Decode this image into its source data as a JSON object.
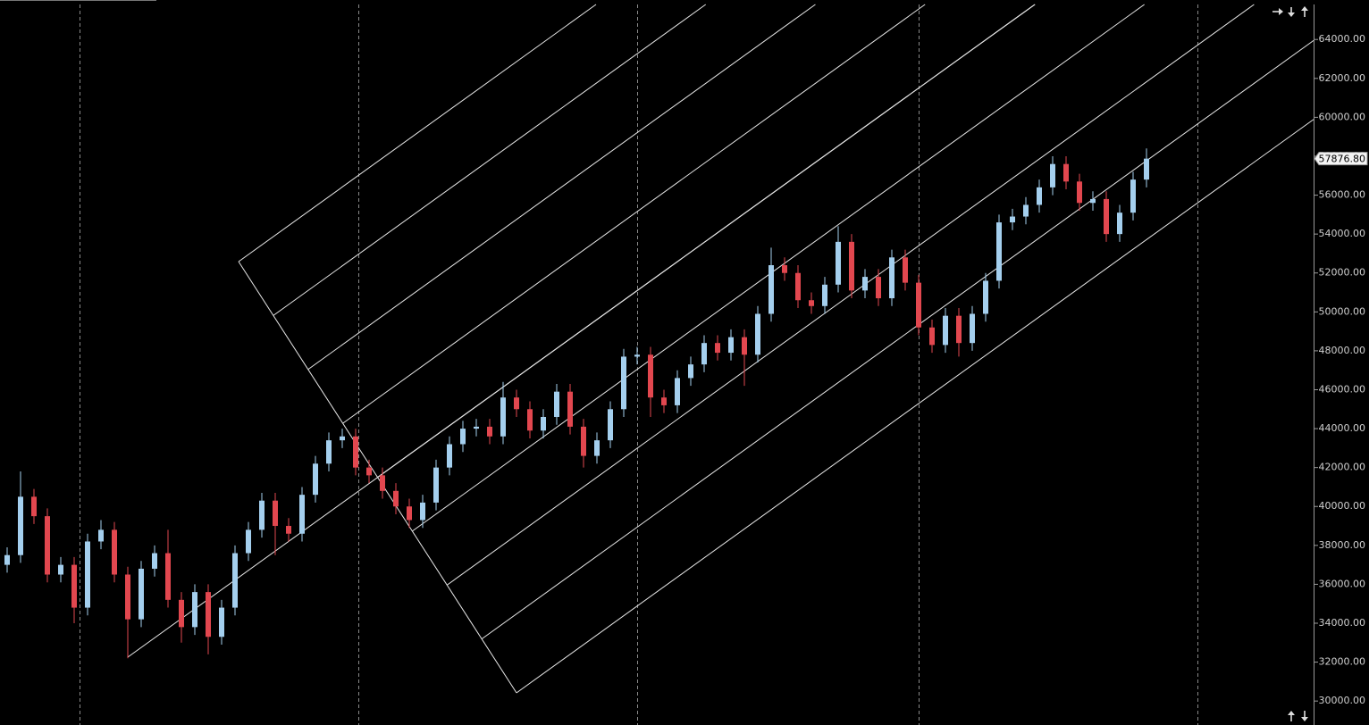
{
  "chart_data": {
    "type": "candlestick",
    "up_color": "#a4cfee",
    "down_color": "#e2474f",
    "ylim": [
      28860,
      65800
    ],
    "yticks": [
      {
        "value": 30000,
        "label": "30000.00"
      },
      {
        "value": 32000,
        "label": "32000.00"
      },
      {
        "value": 34000,
        "label": "34000.00"
      },
      {
        "value": 36000,
        "label": "36000.00"
      },
      {
        "value": 38000,
        "label": "38000.00"
      },
      {
        "value": 40000,
        "label": "40000.00"
      },
      {
        "value": 42000,
        "label": "42000.00"
      },
      {
        "value": 44000,
        "label": "44000.00"
      },
      {
        "value": 46000,
        "label": "46000.00"
      },
      {
        "value": 48000,
        "label": "48000.00"
      },
      {
        "value": 50000,
        "label": "50000.00"
      },
      {
        "value": 52000,
        "label": "52000.00"
      },
      {
        "value": 54000,
        "label": "54000.00"
      },
      {
        "value": 56000,
        "label": "56000.00"
      },
      {
        "value": 58000,
        "label": "58000.00"
      },
      {
        "value": 60000,
        "label": "60000.00"
      },
      {
        "value": 62000,
        "label": "62000.00"
      },
      {
        "value": 64000,
        "label": "64000.00"
      }
    ],
    "last_price": {
      "value": 57876.8,
      "label": "57876.80"
    },
    "open": [
      37000,
      37500,
      40500,
      39500,
      36500,
      37000,
      34800,
      38200,
      38800,
      36500,
      34200,
      36800,
      37600,
      35200,
      33800,
      35600,
      33300,
      34800,
      37600,
      38800,
      40300,
      39000,
      38600,
      40600,
      42200,
      43400,
      43600,
      42000,
      41600,
      40800,
      40000,
      39300,
      40200,
      42000,
      43200,
      44000,
      44100,
      43600,
      45600,
      45000,
      43900,
      44600,
      45900,
      44100,
      42600,
      43400,
      45000,
      47700,
      47800,
      45600,
      45200,
      46600,
      47300,
      48400,
      47900,
      48700,
      47800,
      49900,
      52400,
      52000,
      50600,
      50300,
      51400,
      53600,
      51100,
      51800,
      50700,
      52800,
      51500,
      49200,
      48300,
      49800,
      48400,
      49900,
      51600,
      54600,
      54900,
      55500,
      56400,
      57600,
      56700,
      55600,
      55800,
      54000,
      55100,
      56800
    ],
    "high": [
      37900,
      41800,
      40900,
      39900,
      37400,
      37400,
      38600,
      39300,
      39200,
      36900,
      37200,
      38000,
      38800,
      35600,
      36000,
      36000,
      35200,
      38000,
      39200,
      40700,
      40700,
      39400,
      41000,
      42600,
      43800,
      44000,
      44000,
      42400,
      42000,
      41200,
      40400,
      40600,
      42400,
      43600,
      44400,
      44500,
      44500,
      46400,
      46000,
      45400,
      45000,
      46300,
      46300,
      44500,
      43800,
      45400,
      48100,
      48200,
      48200,
      46000,
      47000,
      47700,
      48800,
      48800,
      49100,
      49100,
      50300,
      53300,
      52800,
      52400,
      51000,
      51800,
      54400,
      54000,
      52200,
      52200,
      53200,
      53200,
      51900,
      49600,
      50200,
      50200,
      50300,
      52000,
      55000,
      55300,
      55900,
      56800,
      58000,
      58000,
      57100,
      56200,
      56200,
      55500,
      57200,
      58400
    ],
    "low": [
      36600,
      37100,
      39100,
      36100,
      36100,
      34000,
      34400,
      37800,
      36100,
      32200,
      33800,
      36400,
      34800,
      33000,
      33400,
      32400,
      32900,
      34400,
      37200,
      38400,
      37500,
      38200,
      38200,
      40200,
      41800,
      43000,
      41600,
      41200,
      40400,
      39600,
      38900,
      38900,
      39800,
      41600,
      42800,
      43600,
      43200,
      43200,
      44600,
      43500,
      43500,
      44200,
      43700,
      42000,
      42200,
      43000,
      44600,
      47300,
      44600,
      44800,
      44800,
      46200,
      46900,
      47500,
      47500,
      46200,
      47400,
      49500,
      51600,
      50200,
      49900,
      49900,
      51000,
      50700,
      50700,
      50300,
      50300,
      51100,
      48800,
      47900,
      47900,
      47700,
      48000,
      49500,
      51200,
      54200,
      54500,
      55100,
      56000,
      56300,
      55200,
      55200,
      53600,
      53600,
      54700,
      56400
    ],
    "close": [
      37500,
      40500,
      39500,
      36500,
      37000,
      34800,
      38200,
      38800,
      36500,
      34200,
      36800,
      37600,
      35200,
      33800,
      35600,
      33300,
      34800,
      37600,
      38800,
      40300,
      39000,
      38600,
      40600,
      42200,
      43400,
      43600,
      42000,
      41600,
      40800,
      40000,
      39300,
      40200,
      42000,
      43200,
      44000,
      44100,
      43600,
      45600,
      45000,
      43900,
      44600,
      45900,
      44100,
      42600,
      43400,
      45000,
      47700,
      47800,
      45600,
      45200,
      46600,
      47300,
      48400,
      47900,
      48700,
      47800,
      49900,
      52400,
      52000,
      50600,
      50300,
      51400,
      53600,
      51100,
      51800,
      50700,
      52800,
      51500,
      49200,
      48300,
      49800,
      48400,
      49900,
      51600,
      54600,
      54900,
      55500,
      56400,
      57600,
      56700,
      55600,
      55800,
      54000,
      55100,
      56800,
      57876.8
    ]
  }
}
